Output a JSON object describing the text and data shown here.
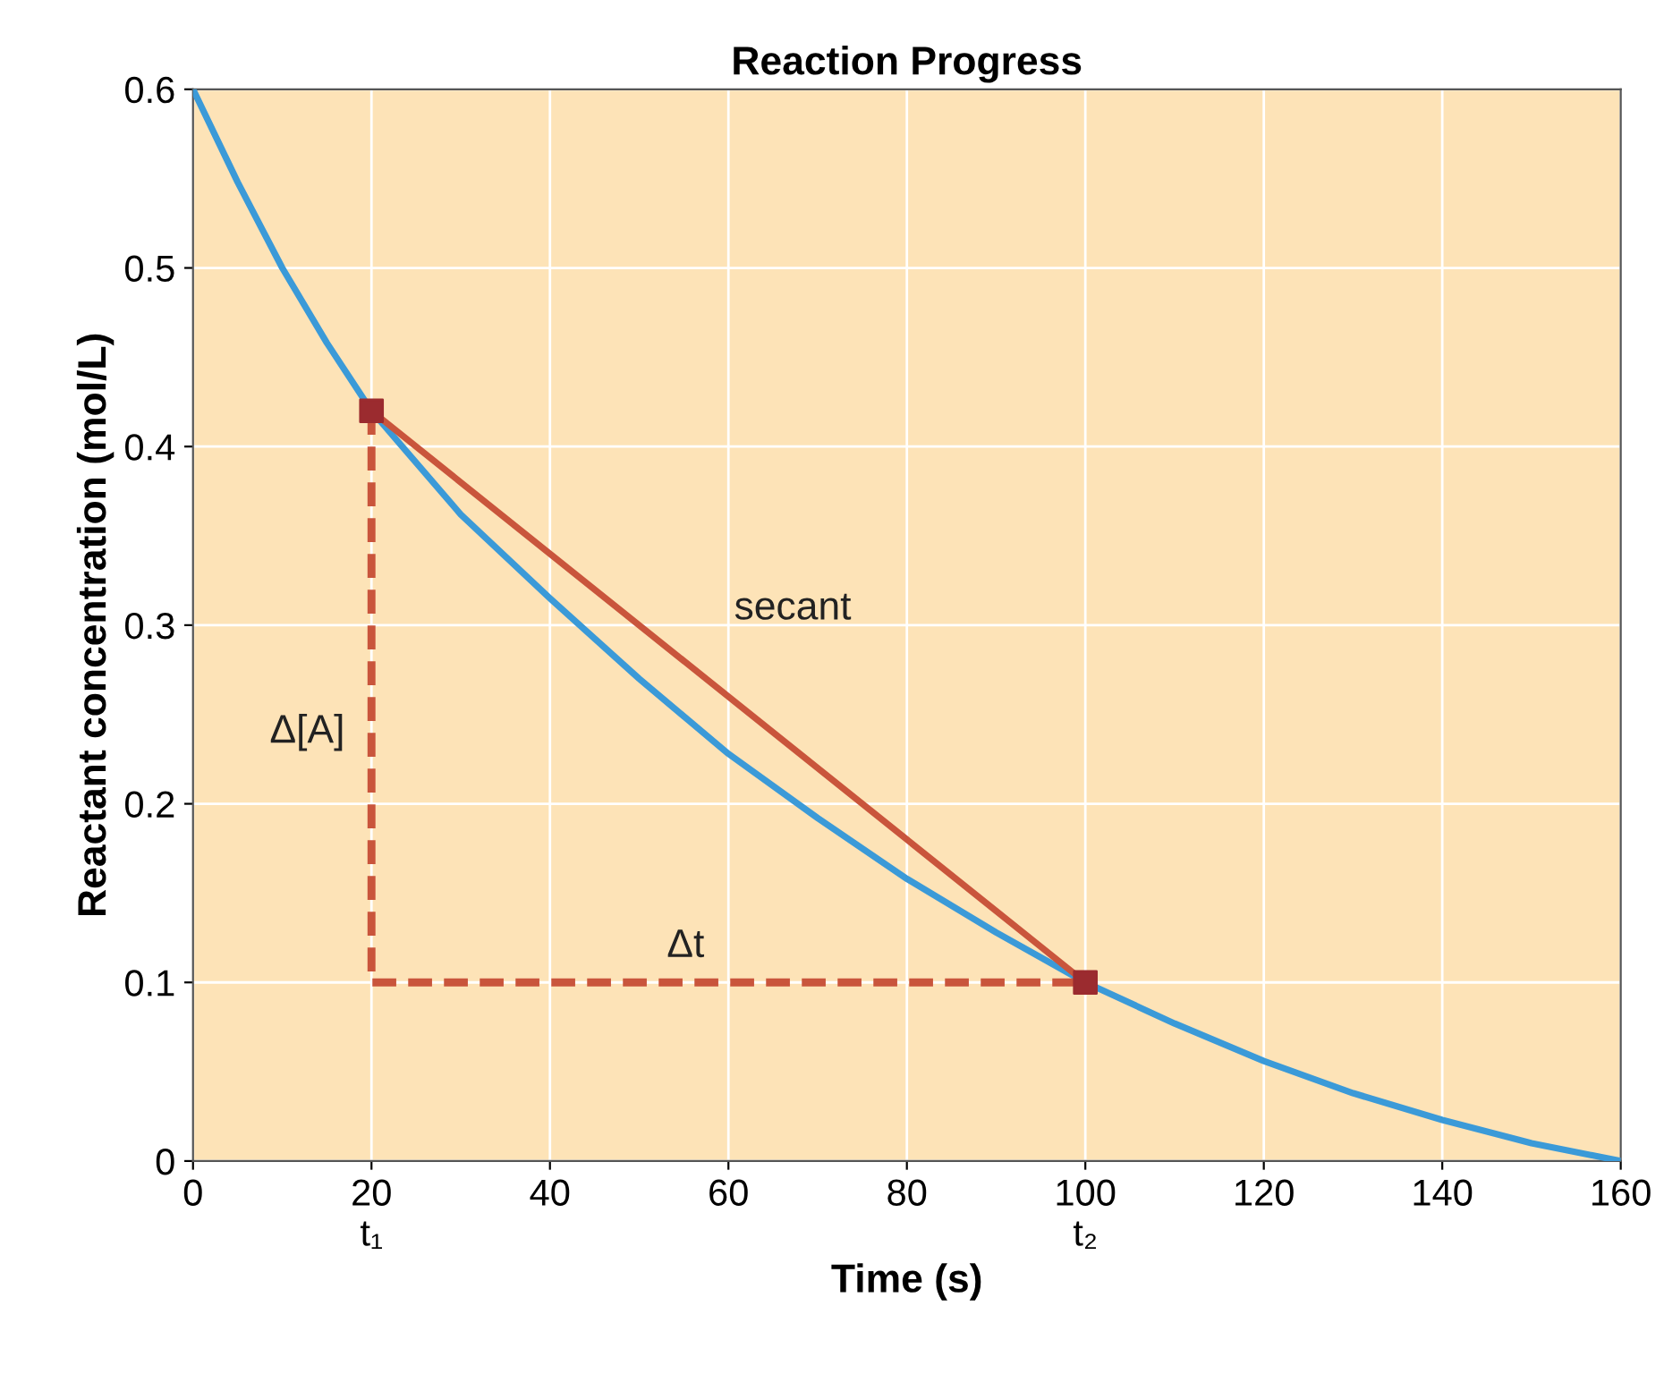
{
  "chart_data": {
    "type": "line",
    "title": "Reaction Progress",
    "xlabel": "Time (s)",
    "ylabel": "Reactant concentration (mol/L)",
    "xlim": [
      0,
      160
    ],
    "ylim": [
      0,
      0.6
    ],
    "xticks": [
      0,
      {
        "value": 20,
        "label": "20\nt₁"
      },
      40,
      60,
      80,
      {
        "value": 100,
        "label": "100\nt₂"
      },
      120,
      140,
      160
    ],
    "yticks": [
      0,
      0.1,
      0.2,
      0.3,
      0.4,
      0.5,
      0.6
    ],
    "grid": true,
    "series": [
      {
        "color": "#3b9ad8",
        "line_style": "solid",
        "marker": "none",
        "x": [
          0,
          5,
          10,
          15,
          20,
          30,
          40,
          50,
          60,
          70,
          80,
          90,
          100,
          110,
          120,
          130,
          140,
          150,
          160
        ],
        "values": [
          0.6,
          0.548,
          0.5,
          0.458,
          0.42,
          0.362,
          0.315,
          0.27,
          0.228,
          0.192,
          0.158,
          0.128,
          0.1,
          0.077,
          0.056,
          0.038,
          0.023,
          0.01,
          0.0
        ]
      },
      {
        "color": "#c9553c",
        "line_style": "solid",
        "marker": "none",
        "x": [
          20,
          100
        ],
        "values": [
          0.42,
          0.1
        ]
      },
      {
        "color": "#c9553c",
        "line_style": "dashed",
        "marker": "none",
        "x": [
          20,
          20,
          100
        ],
        "values": [
          0.42,
          0.1,
          0.1
        ]
      },
      {
        "type": "scatter",
        "color": "#9b2b2f",
        "marker": "square",
        "x": [
          20,
          100
        ],
        "values": [
          0.42,
          0.1
        ]
      }
    ],
    "annotations": [
      "secant",
      "Δ[A]",
      "Δt"
    ]
  }
}
